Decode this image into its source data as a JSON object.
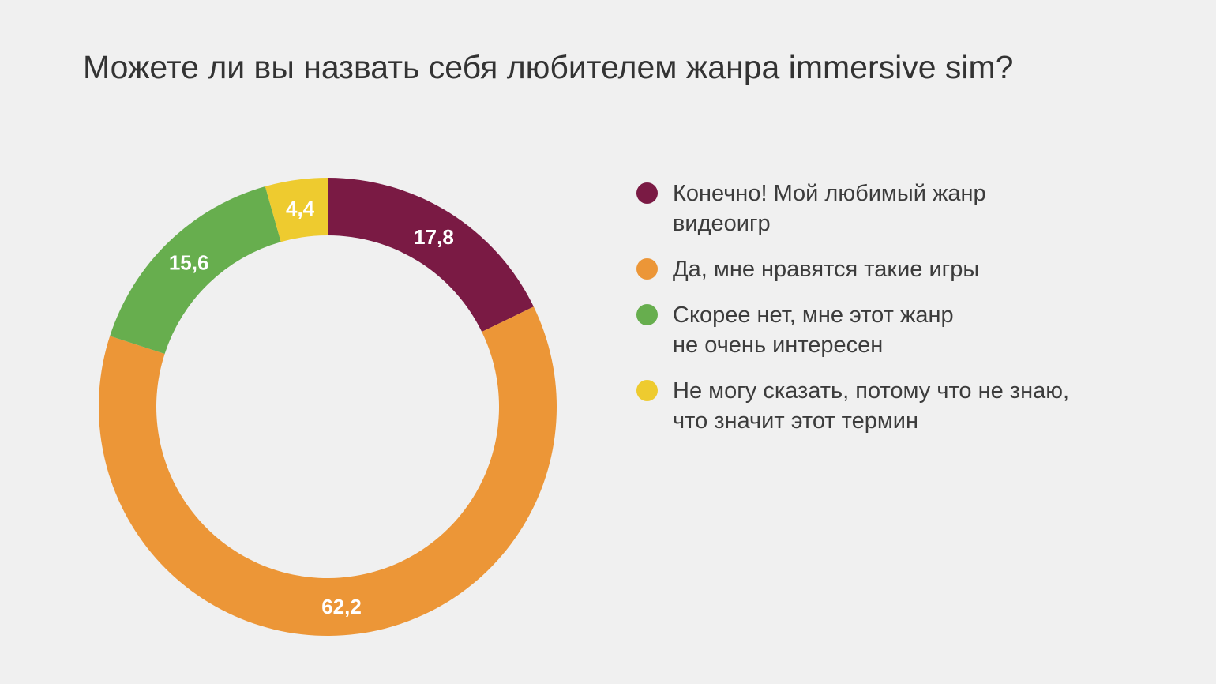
{
  "chart_data": {
    "type": "pie",
    "variant": "donut",
    "title": "Можете ли вы назвать себя любителем жанра immersive sim?",
    "start_angle_deg": 0,
    "direction": "clockwise",
    "legend_position": "right",
    "slices": [
      {
        "label": "Конечно! Мой любимый жанр\nвидеоигр",
        "value": 17.8,
        "value_label": "17,8",
        "color": "#7a1a44"
      },
      {
        "label": "Да, мне нравятся такие игры",
        "value": 62.2,
        "value_label": "62,2",
        "color": "#ec9637"
      },
      {
        "label": "Скорее нет, мне этот жанр\nне очень интересен",
        "value": 15.6,
        "value_label": "15,6",
        "color": "#67ae4e"
      },
      {
        "label": "Не могу сказать, потому что не знаю,\nчто значит этот термин",
        "value": 4.4,
        "value_label": "4,4",
        "color": "#eecb2f"
      }
    ]
  }
}
